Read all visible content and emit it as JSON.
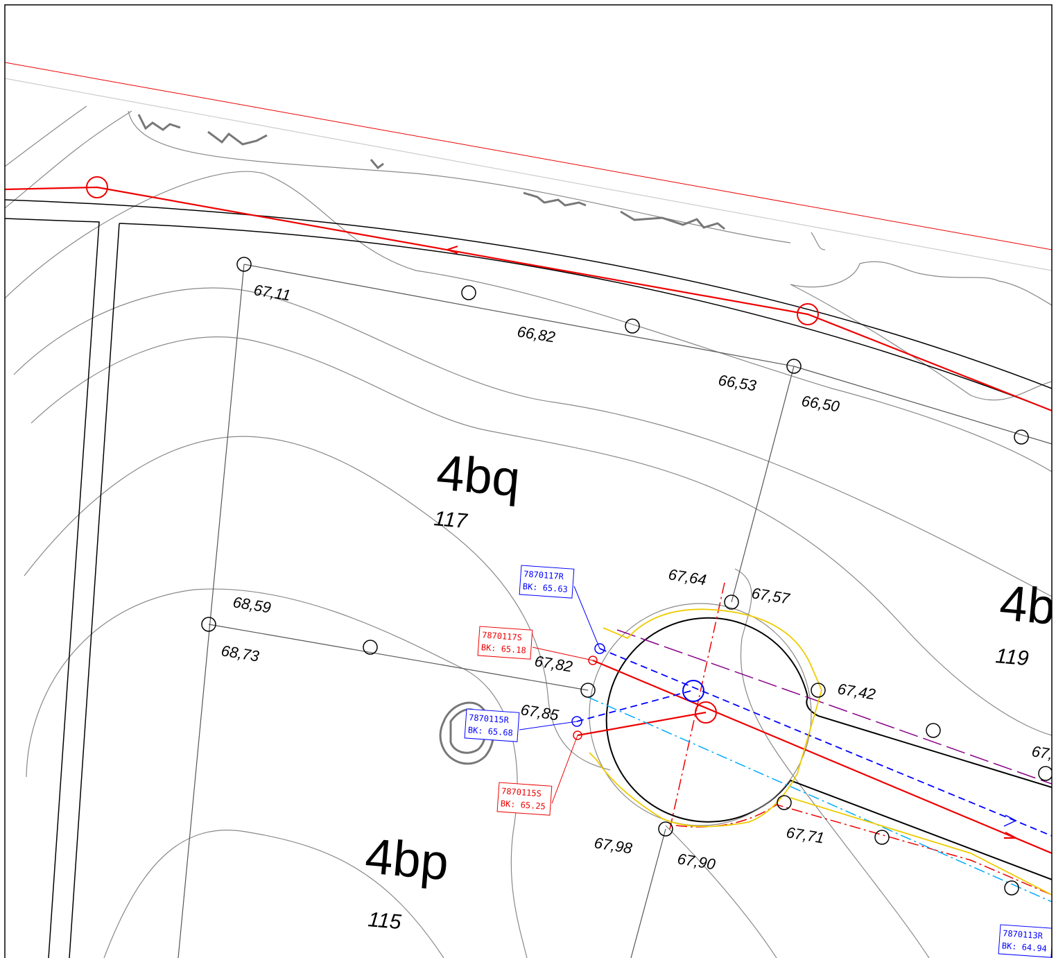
{
  "parcels": [
    {
      "code": "4bq",
      "number": "117"
    },
    {
      "code": "4bp",
      "number": "115"
    },
    {
      "code": "4b",
      "number": "119"
    }
  ],
  "spot_heights": [
    "67,11",
    "66,82",
    "66,53",
    "66,50",
    "68,59",
    "68,73",
    "67,64",
    "67,57",
    "67,82",
    "67,85",
    "67,42",
    "67,98",
    "67,90",
    "67,71",
    "67,"
  ],
  "manholes": [
    {
      "id": "7870117R",
      "bk": "BK: 65.63"
    },
    {
      "id": "7870117S",
      "bk": "BK: 65.18"
    },
    {
      "id": "7870115R",
      "bk": "BK: 65.68"
    },
    {
      "id": "7870115S",
      "bk": "BK: 65.25"
    },
    {
      "id": "7870113R",
      "bk": "BK: 64.94"
    }
  ]
}
